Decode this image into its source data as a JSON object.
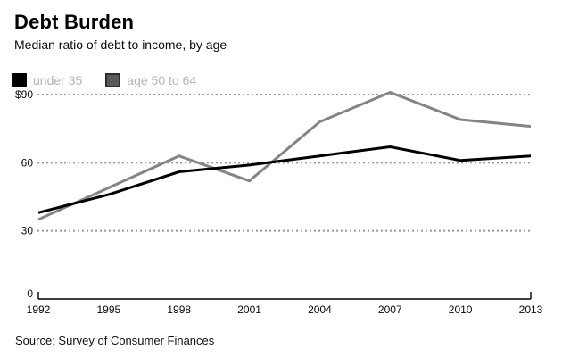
{
  "header": {
    "title": "Debt Burden",
    "subtitle": "Median ratio of debt to income, by age"
  },
  "legend": {
    "items": [
      {
        "label": "under 35",
        "swatch_fill": "#000000",
        "swatch_border": "#000000"
      },
      {
        "label": "age 50 to 64",
        "swatch_fill": "#5a5a5c",
        "swatch_border": "#2e2e2e"
      }
    ]
  },
  "footer": {
    "source": "Source: Survey of Consumer Finances"
  },
  "colors": {
    "gridline": "#9a9a9a",
    "axis": "#000000",
    "tick_text": "#0c0c0c",
    "legend_text": "#b4b4b4"
  },
  "chart_data": {
    "type": "line",
    "title": "Debt Burden",
    "subtitle": "Median ratio of debt to income, by age",
    "source": "Source: Survey of Consumer Finances",
    "categories": [
      "1992",
      "1995",
      "1998",
      "2001",
      "2004",
      "2007",
      "2010",
      "2013"
    ],
    "series": [
      {
        "name": "under 35",
        "color": "#000000",
        "values": [
          38,
          46,
          56,
          59,
          63,
          67,
          61,
          63
        ]
      },
      {
        "name": "age 50 to 64",
        "color": "#848484",
        "values": [
          35,
          49,
          63,
          52,
          78,
          91,
          79,
          76
        ]
      }
    ],
    "yticks": [
      {
        "label": "$90",
        "value": 90
      },
      {
        "label": "60",
        "value": 60
      },
      {
        "label": "30",
        "value": 30
      },
      {
        "label": "0",
        "value": 0
      }
    ],
    "ylim": [
      0,
      90
    ],
    "xlabel": "",
    "ylabel": "",
    "grid": "horizontal-dotted",
    "legend_position": "top-left"
  }
}
